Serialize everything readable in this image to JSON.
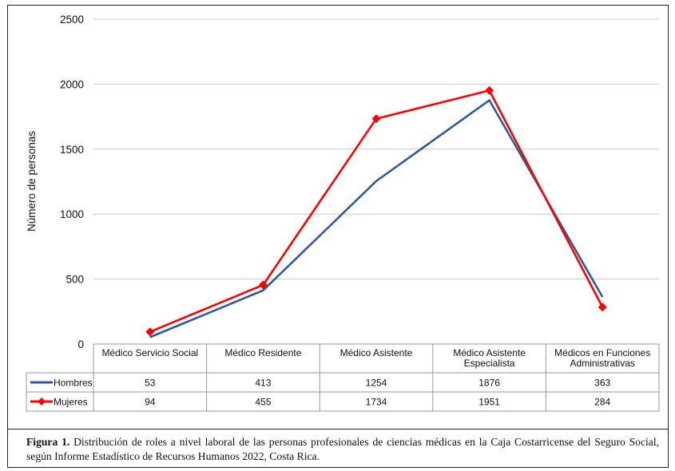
{
  "chart_data": {
    "type": "line",
    "ylabel": "Número de personas",
    "ylim": [
      0,
      2500
    ],
    "yticks": [
      0,
      500,
      1000,
      1500,
      2000,
      2500
    ],
    "grid": true,
    "categories": [
      [
        "Médico Servicio Social"
      ],
      [
        "Médico Residente"
      ],
      [
        "Médico Asistente"
      ],
      [
        "Médico Asistente",
        "Especialista"
      ],
      [
        "Médicos en Funciones",
        "Administrativas"
      ]
    ],
    "series": [
      {
        "name": "Hombres",
        "color": "#2e5b9a",
        "marker": "none",
        "values": [
          53,
          413,
          1254,
          1876,
          363
        ]
      },
      {
        "name": "Mujeres",
        "color": "#ff0000",
        "marker": "diamond",
        "values": [
          94,
          455,
          1734,
          1951,
          284
        ]
      }
    ]
  },
  "caption": {
    "label": "Figura 1.",
    "text": " Distribución de roles a nivel laboral de las personas profesionales de ciencias médicas en la Caja Costarricense del Seguro Social, según Informe Estadístico de Recursos Humanos 2022, Costa Rica."
  }
}
